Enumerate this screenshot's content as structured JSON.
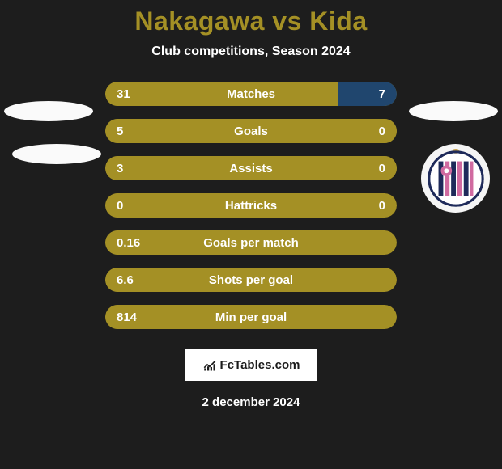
{
  "background_color": "#1d1d1d",
  "accent_color": "#a49025",
  "text_color_primary": "#ffffff",
  "title": "Nakagawa vs Kida",
  "title_color": "#a49025",
  "subtitle": "Club competitions, Season 2024",
  "bars": {
    "track_color": "#a49025",
    "secondary_color": "#20466e",
    "font_size": 15,
    "height": 30,
    "border_radius": 15,
    "items": [
      {
        "label": "Matches",
        "left": "31",
        "right": "7",
        "left_pct": 80,
        "right_pct": 20,
        "show_right_fill": true
      },
      {
        "label": "Goals",
        "left": "5",
        "right": "0",
        "left_pct": 100,
        "right_pct": 0,
        "show_right_fill": false
      },
      {
        "label": "Assists",
        "left": "3",
        "right": "0",
        "left_pct": 100,
        "right_pct": 0,
        "show_right_fill": false
      },
      {
        "label": "Hattricks",
        "left": "0",
        "right": "0",
        "left_pct": 50,
        "right_pct": 0,
        "show_right_fill": false
      },
      {
        "label": "Goals per match",
        "left": "0.16",
        "right": "",
        "left_pct": 92,
        "right_pct": 0,
        "show_right_fill": false
      },
      {
        "label": "Shots per goal",
        "left": "6.6",
        "right": "",
        "left_pct": 92,
        "right_pct": 0,
        "show_right_fill": false
      },
      {
        "label": "Min per goal",
        "left": "814",
        "right": "",
        "left_pct": 92,
        "right_pct": 0,
        "show_right_fill": false
      }
    ]
  },
  "badge": {
    "text": "FcTables.com"
  },
  "date": "2 december 2024",
  "crest": {
    "stripe_colors": [
      "#1e2a5a",
      "#d06aa0"
    ],
    "outer_color": "#eaeaea"
  }
}
